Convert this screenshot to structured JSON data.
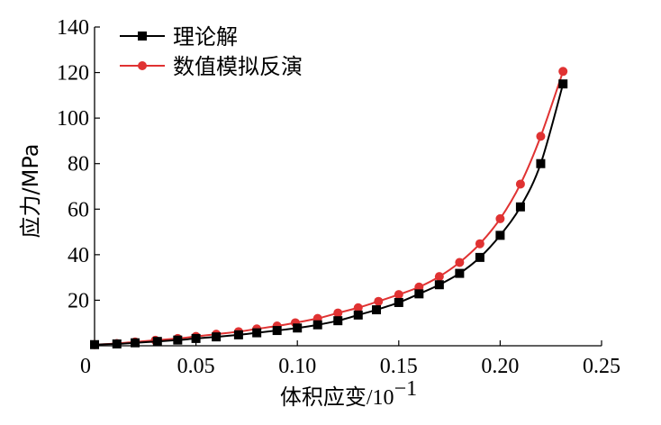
{
  "chart_data": {
    "type": "line",
    "title": "",
    "xlabel": "体积应变",
    "xlabel_unit": "/10",
    "xlabel_exponent": "−1",
    "ylabel": "应力/MPa",
    "xlim": [
      0,
      0.25
    ],
    "ylim": [
      0,
      140
    ],
    "x_ticks": [
      0,
      0.05,
      0.1,
      0.15,
      0.2,
      0.25
    ],
    "x_tick_labels": [
      "0",
      "0.05",
      "0.10",
      "0.15",
      "0.20",
      "0.25"
    ],
    "y_ticks": [
      20,
      40,
      60,
      80,
      100,
      120,
      140
    ],
    "y_tick_labels": [
      "20",
      "40",
      "60",
      "80",
      "100",
      "120",
      "140"
    ],
    "grid": false,
    "legend_position": "top-left",
    "series": [
      {
        "name": "理论解",
        "color": "#000000",
        "marker": "square",
        "x": [
          0.0,
          0.011,
          0.02,
          0.031,
          0.041,
          0.05,
          0.06,
          0.071,
          0.08,
          0.09,
          0.1,
          0.11,
          0.12,
          0.13,
          0.139,
          0.15,
          0.16,
          0.17,
          0.18,
          0.19,
          0.2,
          0.21,
          0.22,
          0.231
        ],
        "values": [
          0.5,
          0.8,
          1.3,
          1.9,
          2.5,
          3.2,
          3.9,
          4.8,
          5.7,
          6.7,
          7.8,
          9.2,
          11.0,
          13.5,
          15.8,
          19.0,
          22.8,
          26.8,
          31.8,
          38.8,
          48.5,
          61.0,
          80.0,
          115.0
        ]
      },
      {
        "name": "数值模拟反演",
        "color": "#e03232",
        "marker": "circle",
        "x": [
          0.0,
          0.011,
          0.02,
          0.03,
          0.041,
          0.05,
          0.06,
          0.071,
          0.08,
          0.09,
          0.099,
          0.11,
          0.12,
          0.13,
          0.14,
          0.15,
          0.16,
          0.17,
          0.18,
          0.19,
          0.2,
          0.21,
          0.22,
          0.231
        ],
        "values": [
          0.5,
          1.0,
          1.7,
          2.4,
          3.2,
          4.1,
          5.1,
          6.2,
          7.4,
          8.7,
          10.1,
          12.0,
          14.4,
          16.7,
          19.5,
          22.5,
          25.8,
          30.4,
          36.6,
          44.8,
          55.8,
          71.0,
          92.0,
          120.5
        ]
      }
    ]
  }
}
